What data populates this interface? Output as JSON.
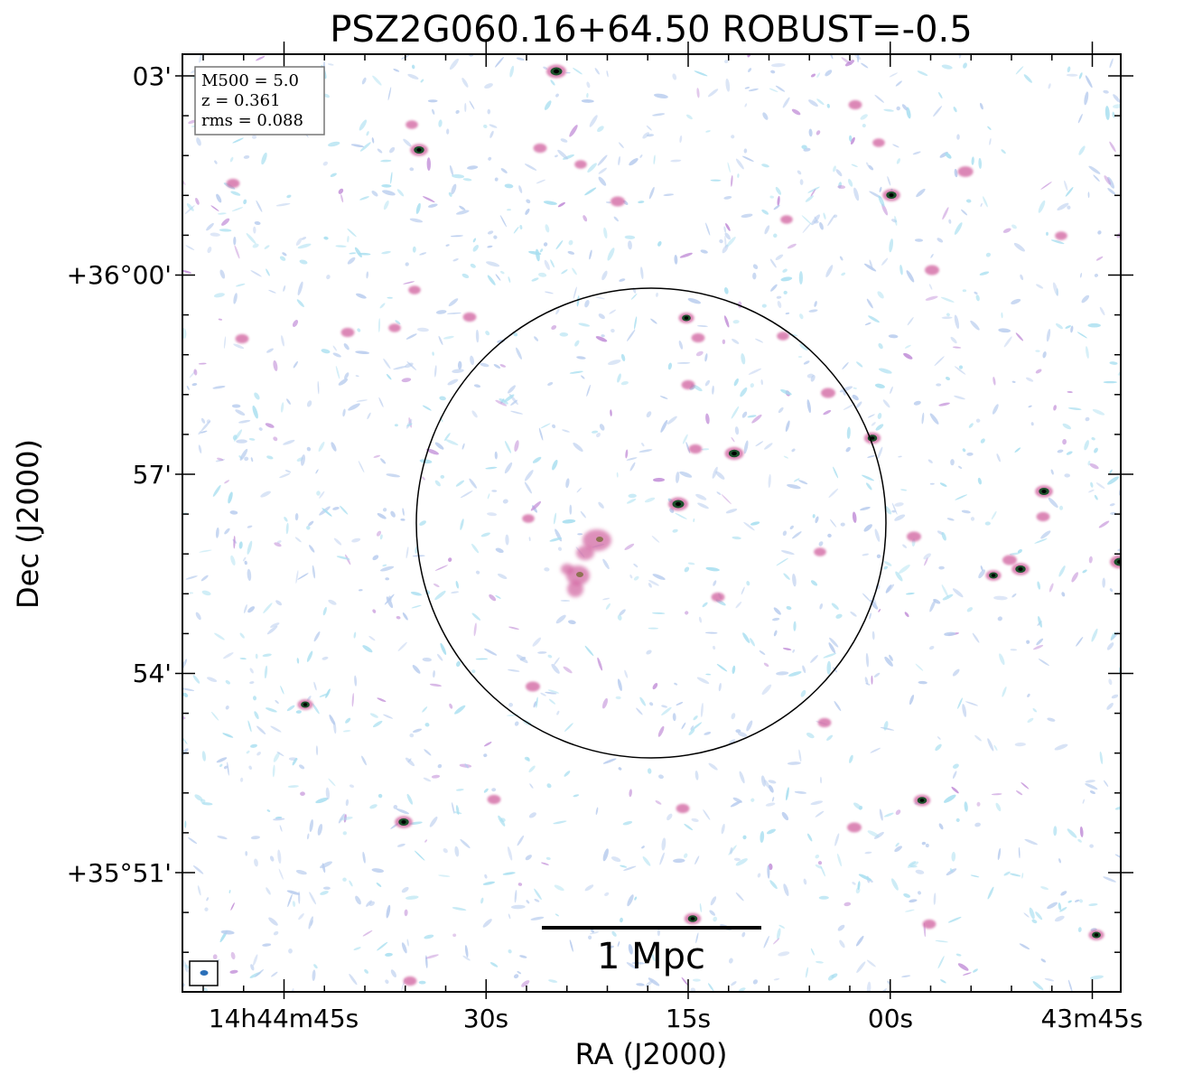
{
  "chart_data": {
    "type": "heatmap",
    "title": "PSZ2G060.16+64.50 ROBUST=-0.5",
    "xlabel": "RA (J2000)",
    "ylabel": "Dec (J2000)",
    "x_ticks": [
      "14h44m45s",
      "30s",
      "15s",
      "00s",
      "43m45s"
    ],
    "y_ticks": [
      "03'",
      "+36°00'",
      "57'",
      "54'",
      "+35°51'"
    ],
    "info_box": [
      "M500 = 5.0",
      "z = 0.361",
      "rms = 0.088"
    ],
    "scale_bar_label": "1 Mpc",
    "colors": {
      "faint": "#b9cdee",
      "faint_alt": "#a9dff0",
      "medium": "#c28fd8",
      "bright": "#d0609e",
      "core": "#1b4f2a",
      "peak": "#000000",
      "beam": "#2a6fb8"
    }
  }
}
